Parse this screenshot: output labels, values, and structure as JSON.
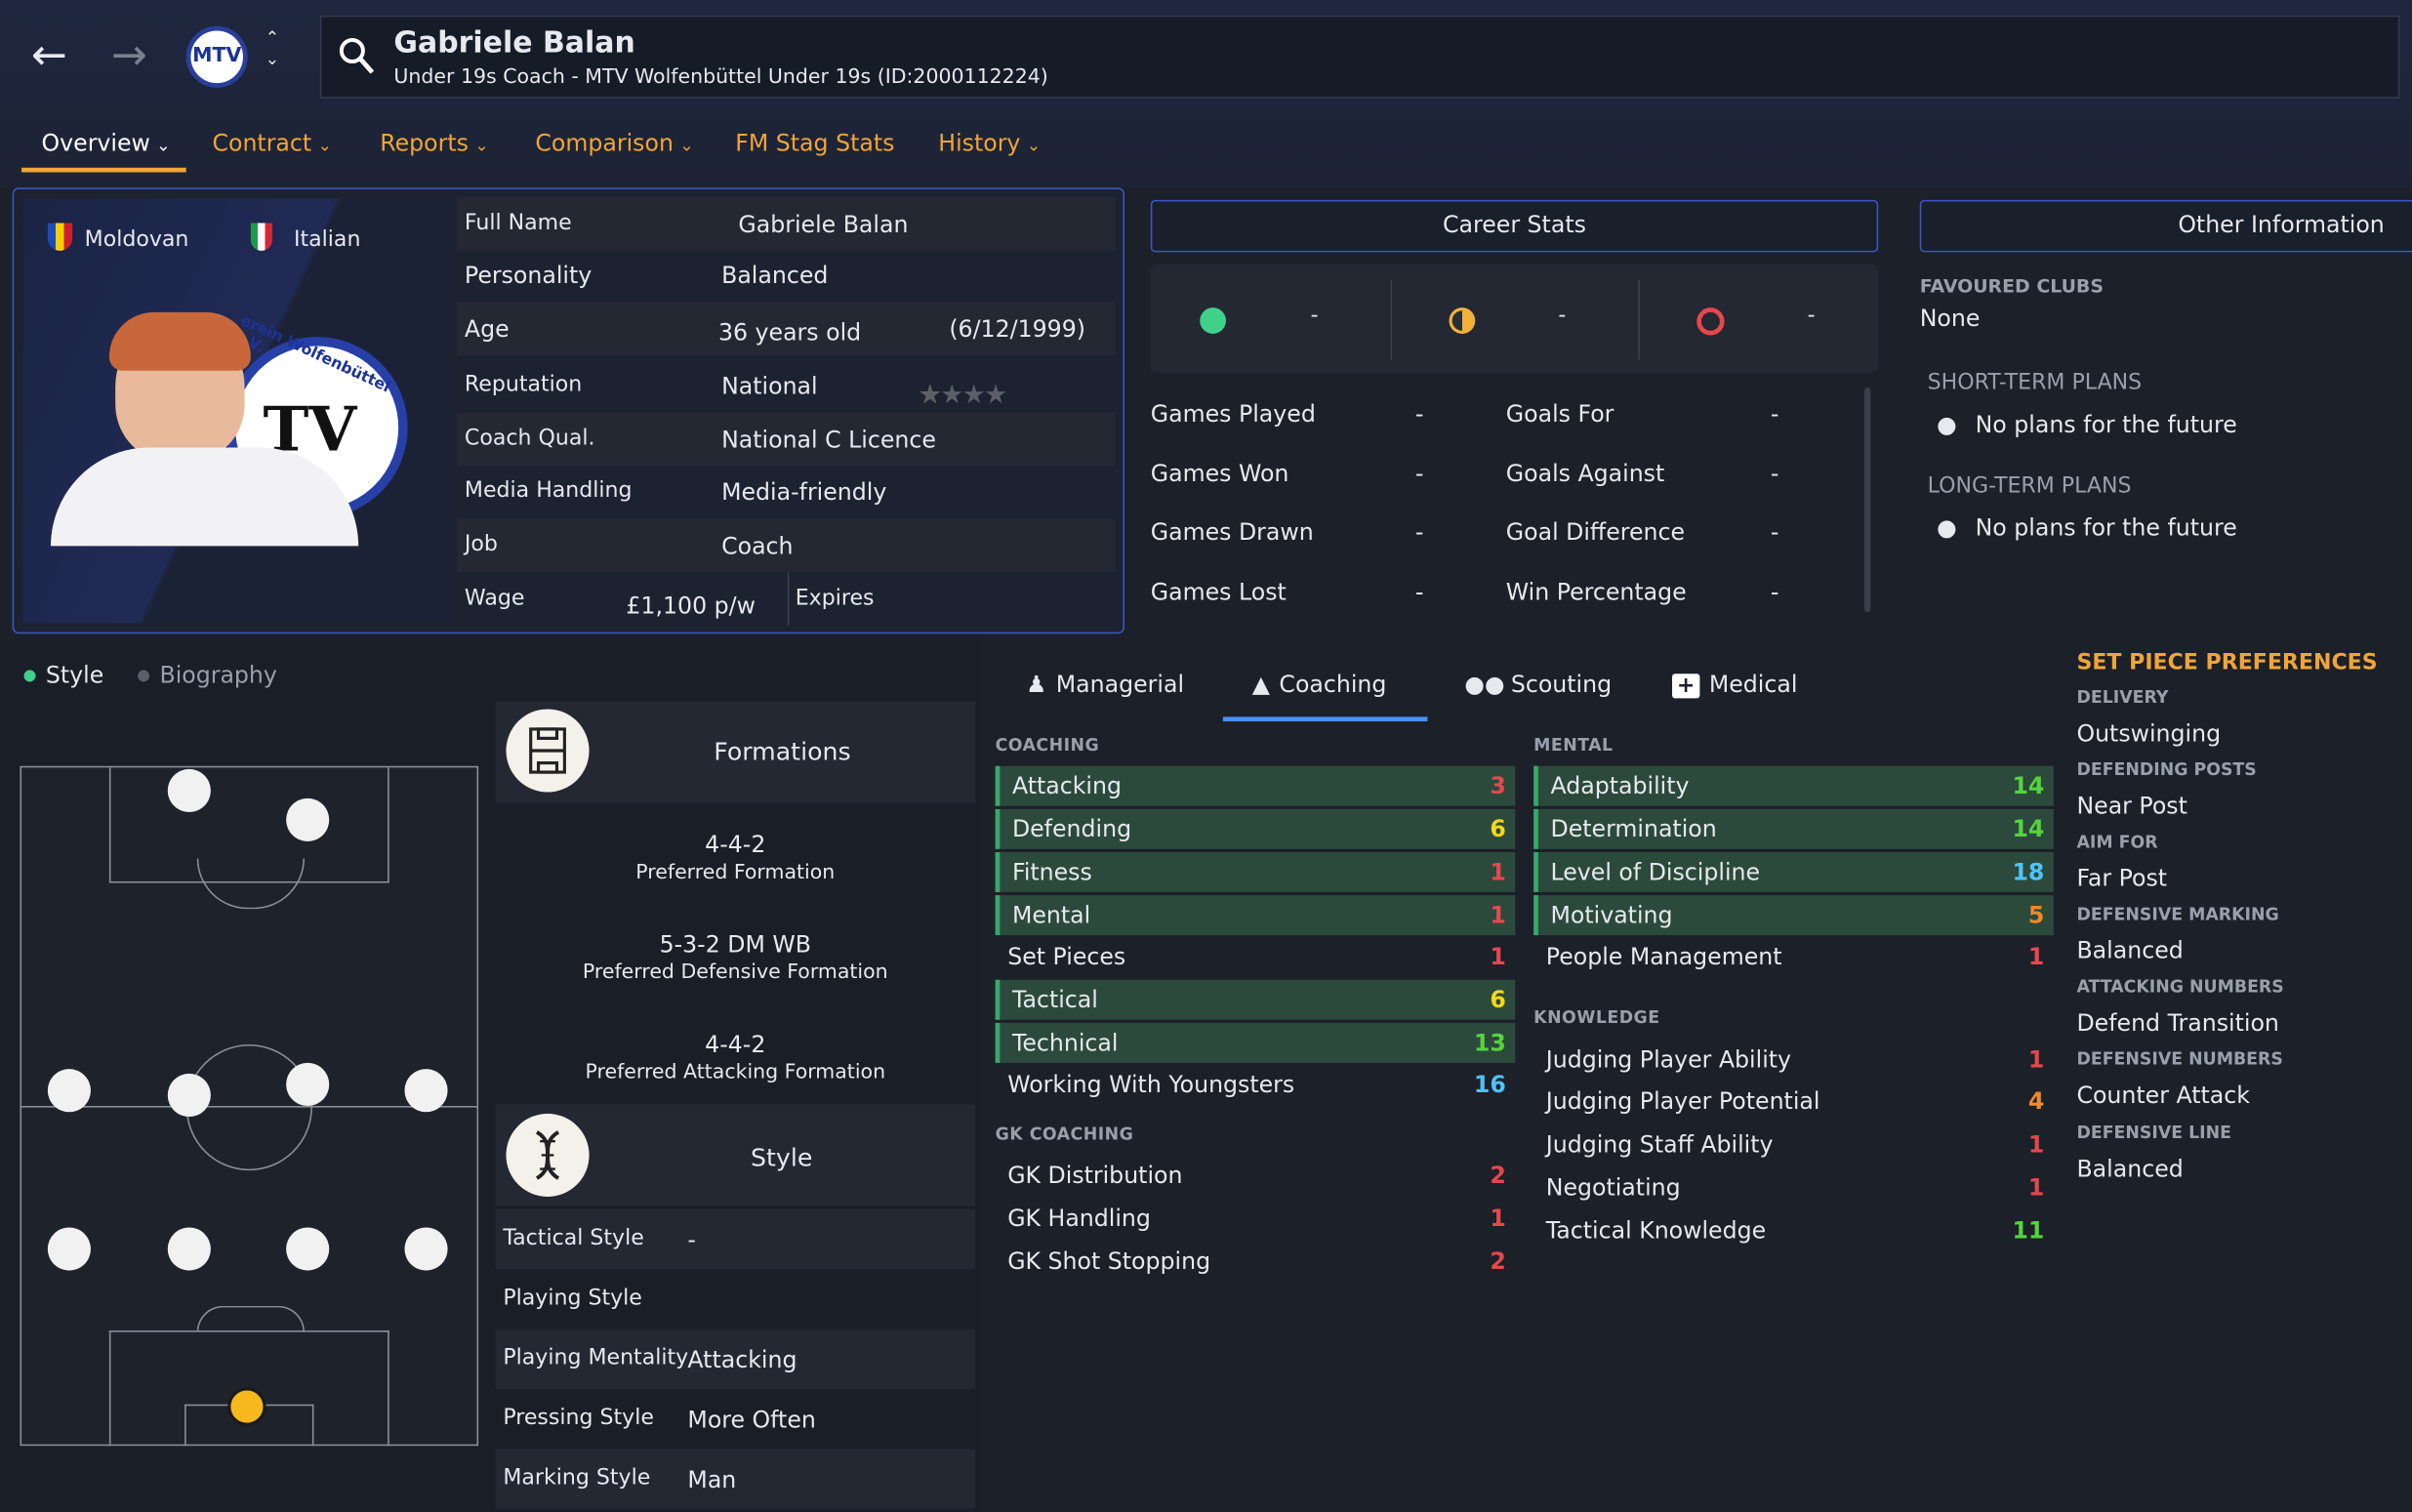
{
  "header": {
    "name": "Gabriele Balan",
    "subtitle": "Under 19s Coach - MTV Wolfenbüttel Under 19s (ID:2000112224)",
    "tabs": [
      {
        "label": "Overview"
      },
      {
        "label": "Contract"
      },
      {
        "label": "Reports"
      },
      {
        "label": "Comparison"
      },
      {
        "label": "FM Stag Stats"
      },
      {
        "label": "History"
      }
    ],
    "club_badge_text": "MTV"
  },
  "profile": {
    "nationalities": [
      "Moldovan",
      "Italian"
    ],
    "rows": [
      {
        "label": "Full Name",
        "value": "Gabriele Balan"
      },
      {
        "label": "Personality",
        "value": "Balanced"
      },
      {
        "label": "Age",
        "value": "36 years old",
        "extra": "(6/12/1999)"
      },
      {
        "label": "Reputation",
        "value": "National",
        "stars": 1,
        "stars_max": 5
      },
      {
        "label": "Coach Qual.",
        "value": "National C Licence"
      },
      {
        "label": "Media Handling",
        "value": "Media-friendly"
      },
      {
        "label": "Job",
        "value": "Coach"
      },
      {
        "label": "Wage",
        "value": "£1,100 p/w",
        "extra": "Expires"
      }
    ],
    "badge_text": "erein Wolfenbüttel e.V."
  },
  "career": {
    "title": "Career Stats",
    "summary": [
      {
        "icon": "win-dot-icon",
        "value": "-"
      },
      {
        "icon": "draw-dot-icon",
        "value": "-"
      },
      {
        "icon": "loss-ring-icon",
        "value": "-"
      }
    ],
    "left": [
      {
        "label": "Games Played",
        "value": "-"
      },
      {
        "label": "Games Won",
        "value": "-"
      },
      {
        "label": "Games Drawn",
        "value": "-"
      },
      {
        "label": "Games Lost",
        "value": "-"
      }
    ],
    "right": [
      {
        "label": "Goals For",
        "value": "-"
      },
      {
        "label": "Goals Against",
        "value": "-"
      },
      {
        "label": "Goal Difference",
        "value": "-"
      },
      {
        "label": "Win Percentage",
        "value": "-"
      }
    ]
  },
  "other": {
    "title": "Other Information",
    "favoured_clubs_label": "FAVOURED CLUBS",
    "favoured_clubs": "None",
    "short_term_label": "SHORT-TERM PLANS",
    "short_term": "No plans for the future",
    "long_term_label": "LONG-TERM PLANS",
    "long_term": "No plans for the future"
  },
  "style_panel": {
    "toggle": [
      "Style",
      "Biography"
    ],
    "formations_title": "Formations",
    "formations": [
      {
        "value": "4-4-2",
        "label": "Preferred Formation"
      },
      {
        "value": "5-3-2 DM WB",
        "label": "Preferred Defensive Formation"
      },
      {
        "value": "4-4-2",
        "label": "Preferred Attacking Formation"
      }
    ],
    "style_title": "Style",
    "style_rows": [
      {
        "label": "Tactical Style",
        "value": "-"
      },
      {
        "label": "Playing Style",
        "value": ""
      },
      {
        "label": "Playing Mentality",
        "value": "Attacking"
      },
      {
        "label": "Pressing Style",
        "value": "More Often"
      },
      {
        "label": "Marking Style",
        "value": "Man"
      }
    ]
  },
  "attr_tabs": [
    "Managerial",
    "Coaching",
    "Scouting",
    "Medical"
  ],
  "coaching": {
    "title": "COACHING",
    "items": [
      {
        "name": "Attacking",
        "value": "3"
      },
      {
        "name": "Defending",
        "value": "6"
      },
      {
        "name": "Fitness",
        "value": "1"
      },
      {
        "name": "Mental",
        "value": "1"
      },
      {
        "name": "Set Pieces",
        "value": "1"
      },
      {
        "name": "Tactical",
        "value": "6"
      },
      {
        "name": "Technical",
        "value": "13"
      },
      {
        "name": "Working With Youngsters",
        "value": "16"
      }
    ]
  },
  "gk": {
    "title": "GK COACHING",
    "items": [
      {
        "name": "GK Distribution",
        "value": "2"
      },
      {
        "name": "GK Handling",
        "value": "1"
      },
      {
        "name": "GK Shot Stopping",
        "value": "2"
      }
    ]
  },
  "mental": {
    "title": "MENTAL",
    "items": [
      {
        "name": "Adaptability",
        "value": "14"
      },
      {
        "name": "Determination",
        "value": "14"
      },
      {
        "name": "Level of Discipline",
        "value": "18"
      },
      {
        "name": "Motivating",
        "value": "5"
      },
      {
        "name": "People Management",
        "value": "1"
      }
    ]
  },
  "knowledge": {
    "title": "KNOWLEDGE",
    "items": [
      {
        "name": "Judging Player Ability",
        "value": "1"
      },
      {
        "name": "Judging Player Potential",
        "value": "4"
      },
      {
        "name": "Judging Staff Ability",
        "value": "1"
      },
      {
        "name": "Negotiating",
        "value": "1"
      },
      {
        "name": "Tactical Knowledge",
        "value": "11"
      }
    ]
  },
  "set_piece": {
    "title": "SET PIECE PREFERENCES",
    "items": [
      {
        "label": "DELIVERY",
        "value": "Outswinging"
      },
      {
        "label": "DEFENDING POSTS",
        "value": "Near Post"
      },
      {
        "label": "AIM FOR",
        "value": "Far Post"
      },
      {
        "label": "DEFENSIVE MARKING",
        "value": "Balanced"
      },
      {
        "label": "ATTACKING NUMBERS",
        "value": "Defend Transition"
      },
      {
        "label": "DEFENSIVE NUMBERS",
        "value": "Counter Attack"
      },
      {
        "label": "DEFENSIVE LINE",
        "value": "Balanced"
      }
    ]
  },
  "colors": {
    "accent_orange": "#f0a53a",
    "frame_blue": "#3b55c8",
    "highlight_green": "#2c4a3c",
    "val_red": "#e5484d",
    "val_orange": "#f0892a",
    "val_yellow": "#f2d81a",
    "val_green": "#55d43c",
    "val_blue": "#4fc3f7"
  }
}
